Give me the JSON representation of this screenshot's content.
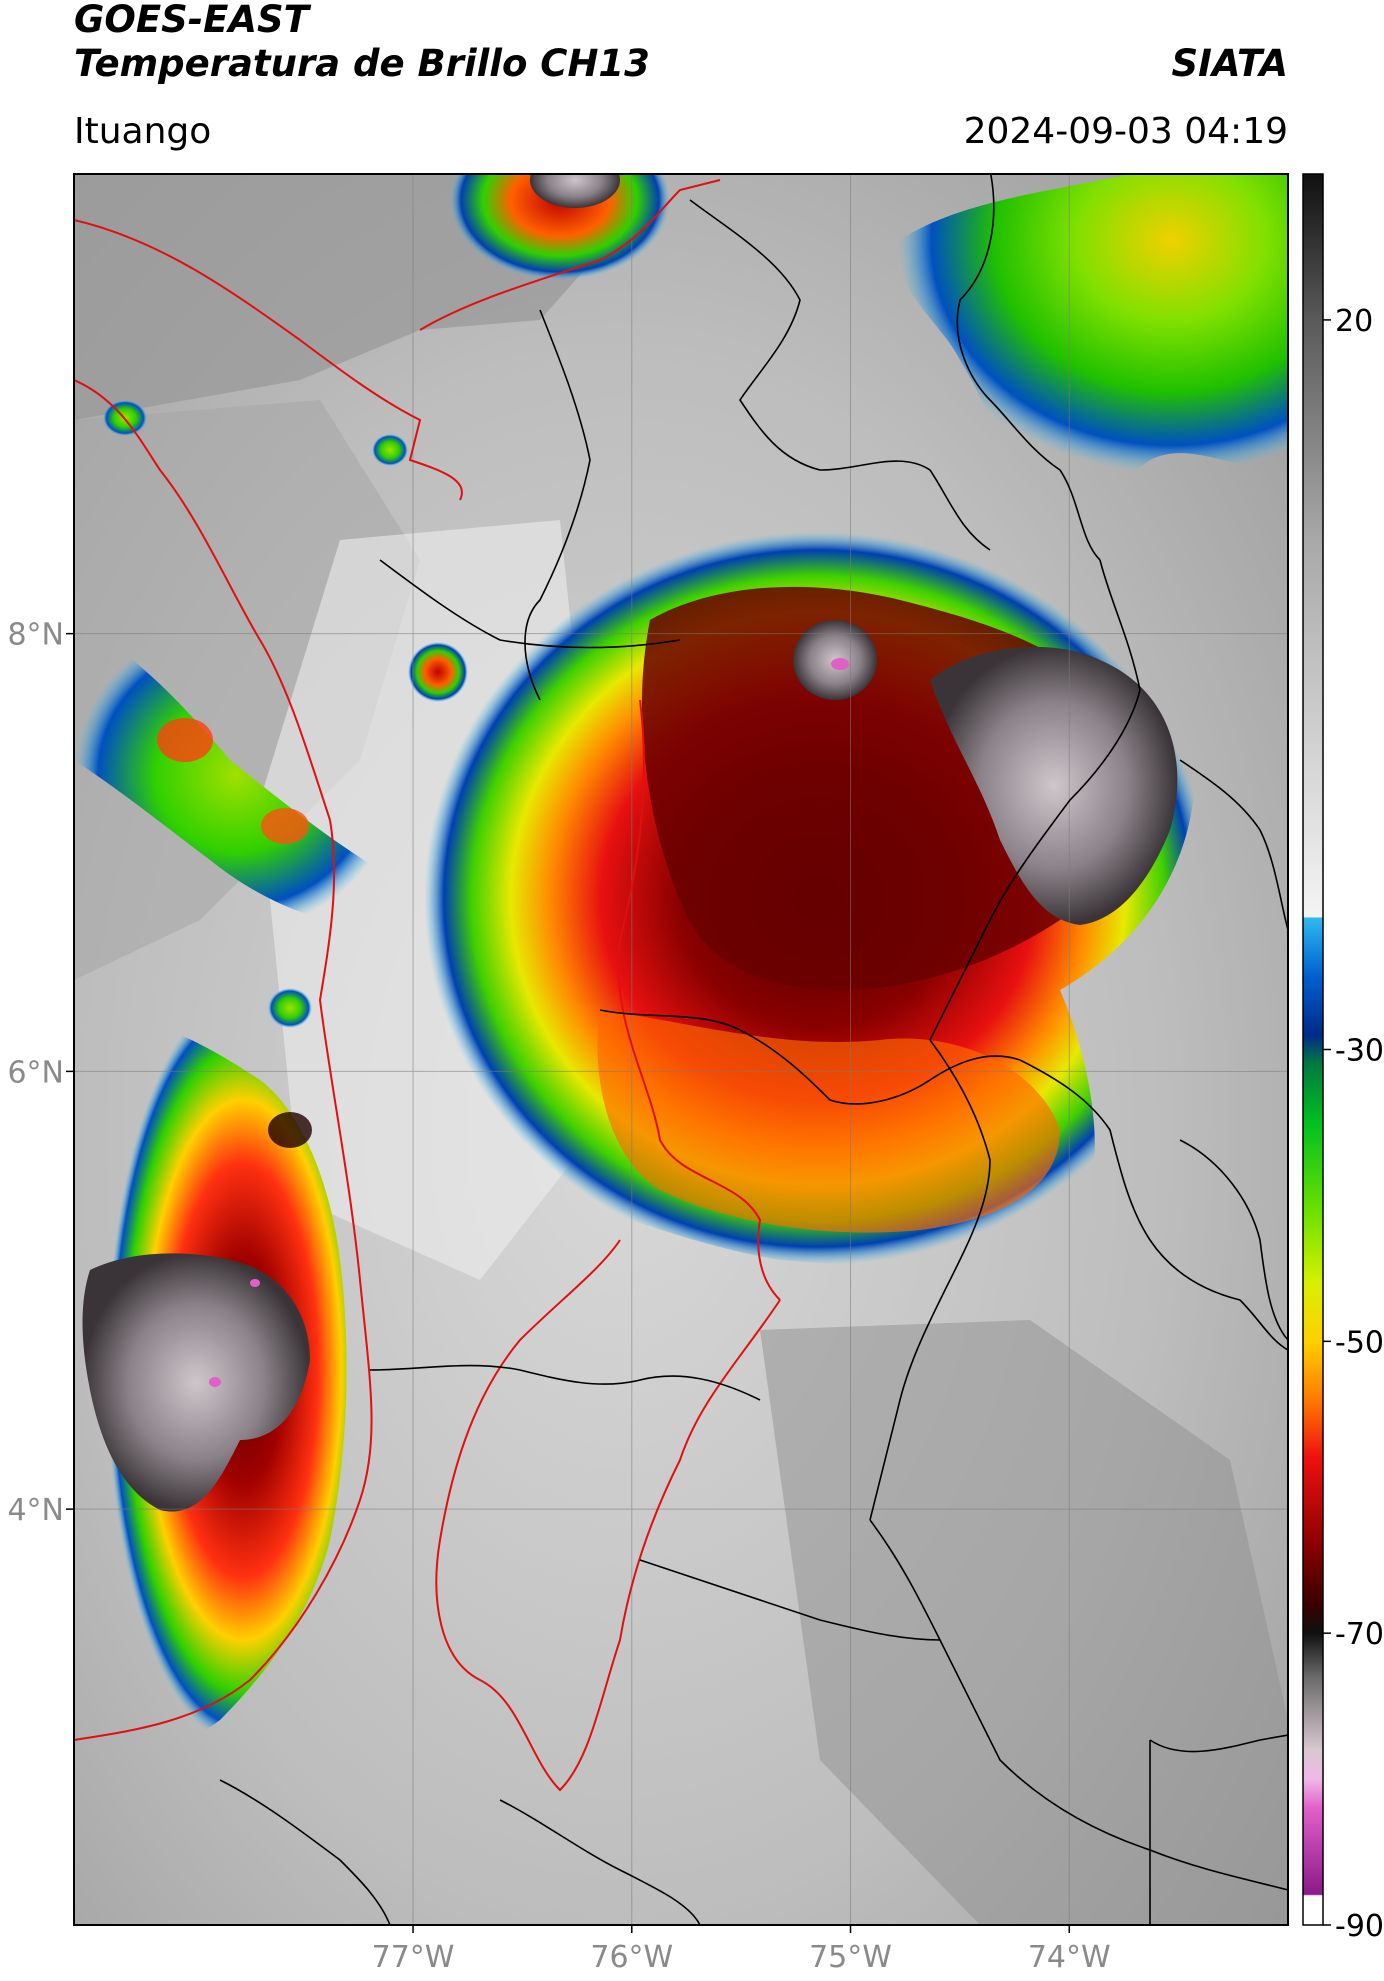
{
  "header": {
    "satellite": "GOES-EAST",
    "product": "Temperatura de Brillo CH13",
    "organization": "SIATA",
    "region": "Ituango",
    "timestamp": "2024-09-03 04:19"
  },
  "map": {
    "lon_range": [
      -78.55,
      -73.0
    ],
    "lat_range": [
      2.1,
      10.1
    ],
    "lat_ticks": [
      {
        "value": 8,
        "label": "8°N"
      },
      {
        "value": 6,
        "label": "6°N"
      },
      {
        "value": 4,
        "label": "4°N"
      }
    ],
    "lon_ticks": [
      {
        "value": -77,
        "label": "77°W"
      },
      {
        "value": -76,
        "label": "76°W"
      },
      {
        "value": -75,
        "label": "75°W"
      },
      {
        "value": -74,
        "label": "74°W"
      }
    ],
    "border_colors": {
      "departments": "#000000",
      "highlight": "#e01010"
    }
  },
  "colorbar": {
    "unit_range": [
      -90,
      30
    ],
    "ticks": [
      {
        "value": 20,
        "label": "20"
      },
      {
        "value": -30,
        "label": "-30"
      },
      {
        "value": -50,
        "label": "-50"
      },
      {
        "value": -70,
        "label": "-70"
      },
      {
        "value": -90,
        "label": "-90"
      }
    ],
    "stops": [
      {
        "t": -90,
        "color": "#ffffff"
      },
      {
        "t": -88,
        "color": "#ffffff"
      },
      {
        "t": -87.9,
        "color": "#8a1a8a"
      },
      {
        "t": -82,
        "color": "#e060c8"
      },
      {
        "t": -80,
        "color": "#f0b8e8"
      },
      {
        "t": -78,
        "color": "#d8c8d0"
      },
      {
        "t": -73,
        "color": "#6a6a6a"
      },
      {
        "t": -70,
        "color": "#101010"
      },
      {
        "t": -68,
        "color": "#3a0000"
      },
      {
        "t": -64,
        "color": "#8a0000"
      },
      {
        "t": -58,
        "color": "#ee1010"
      },
      {
        "t": -54,
        "color": "#ff7a00"
      },
      {
        "t": -50,
        "color": "#ffd000"
      },
      {
        "t": -46,
        "color": "#d8f000"
      },
      {
        "t": -41,
        "color": "#6ae000"
      },
      {
        "t": -35,
        "color": "#00c020"
      },
      {
        "t": -31,
        "color": "#007a40"
      },
      {
        "t": -29,
        "color": "#002a8a"
      },
      {
        "t": -25,
        "color": "#0060d0"
      },
      {
        "t": -21,
        "color": "#30b8f0"
      },
      {
        "t": -20.9,
        "color": "#f4f4f4"
      },
      {
        "t": 5,
        "color": "#a8a8a8"
      },
      {
        "t": 20,
        "color": "#5a5a5a"
      },
      {
        "t": 30,
        "color": "#101010"
      }
    ]
  }
}
